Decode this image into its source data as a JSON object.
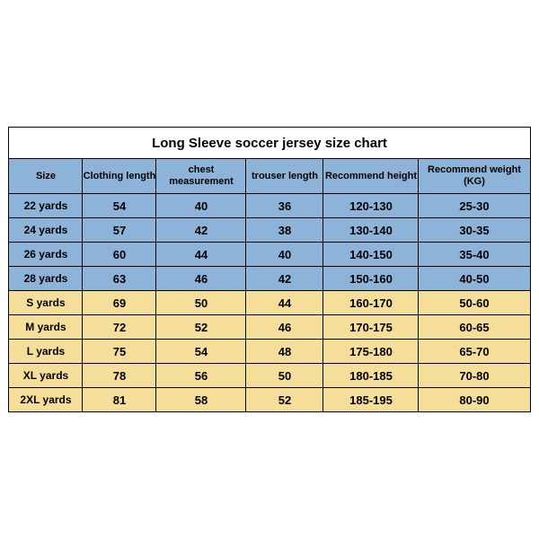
{
  "title": "Long Sleeve soccer jersey size chart",
  "columns": [
    "Size",
    "Clothing length",
    "chest measurement",
    "trouser length",
    "Recommend height",
    "Recommend weight (KG)"
  ],
  "rows": [
    {
      "group": "blue",
      "cells": [
        "22 yards",
        "54",
        "40",
        "36",
        "120-130",
        "25-30"
      ]
    },
    {
      "group": "blue",
      "cells": [
        "24 yards",
        "57",
        "42",
        "38",
        "130-140",
        "30-35"
      ]
    },
    {
      "group": "blue",
      "cells": [
        "26 yards",
        "60",
        "44",
        "40",
        "140-150",
        "35-40"
      ]
    },
    {
      "group": "blue",
      "cells": [
        "28 yards",
        "63",
        "46",
        "42",
        "150-160",
        "40-50"
      ]
    },
    {
      "group": "yellow",
      "cells": [
        "S yards",
        "69",
        "50",
        "44",
        "160-170",
        "50-60"
      ]
    },
    {
      "group": "yellow",
      "cells": [
        "M yards",
        "72",
        "52",
        "46",
        "170-175",
        "60-65"
      ]
    },
    {
      "group": "yellow",
      "cells": [
        "L yards",
        "75",
        "54",
        "48",
        "175-180",
        "65-70"
      ]
    },
    {
      "group": "yellow",
      "cells": [
        "XL yards",
        "78",
        "56",
        "50",
        "180-185",
        "70-80"
      ]
    },
    {
      "group": "yellow",
      "cells": [
        "2XL yards",
        "81",
        "58",
        "52",
        "185-195",
        "80-90"
      ]
    }
  ],
  "colors": {
    "header_bg": "#8db4d8",
    "blue_bg": "#8db4d8",
    "yellow_bg": "#f5de9a",
    "border": "#000000",
    "text": "#000000"
  },
  "font": {
    "family": "Arial",
    "body_size_pt": 10,
    "title_size_pt": 12,
    "weight": "bold"
  }
}
